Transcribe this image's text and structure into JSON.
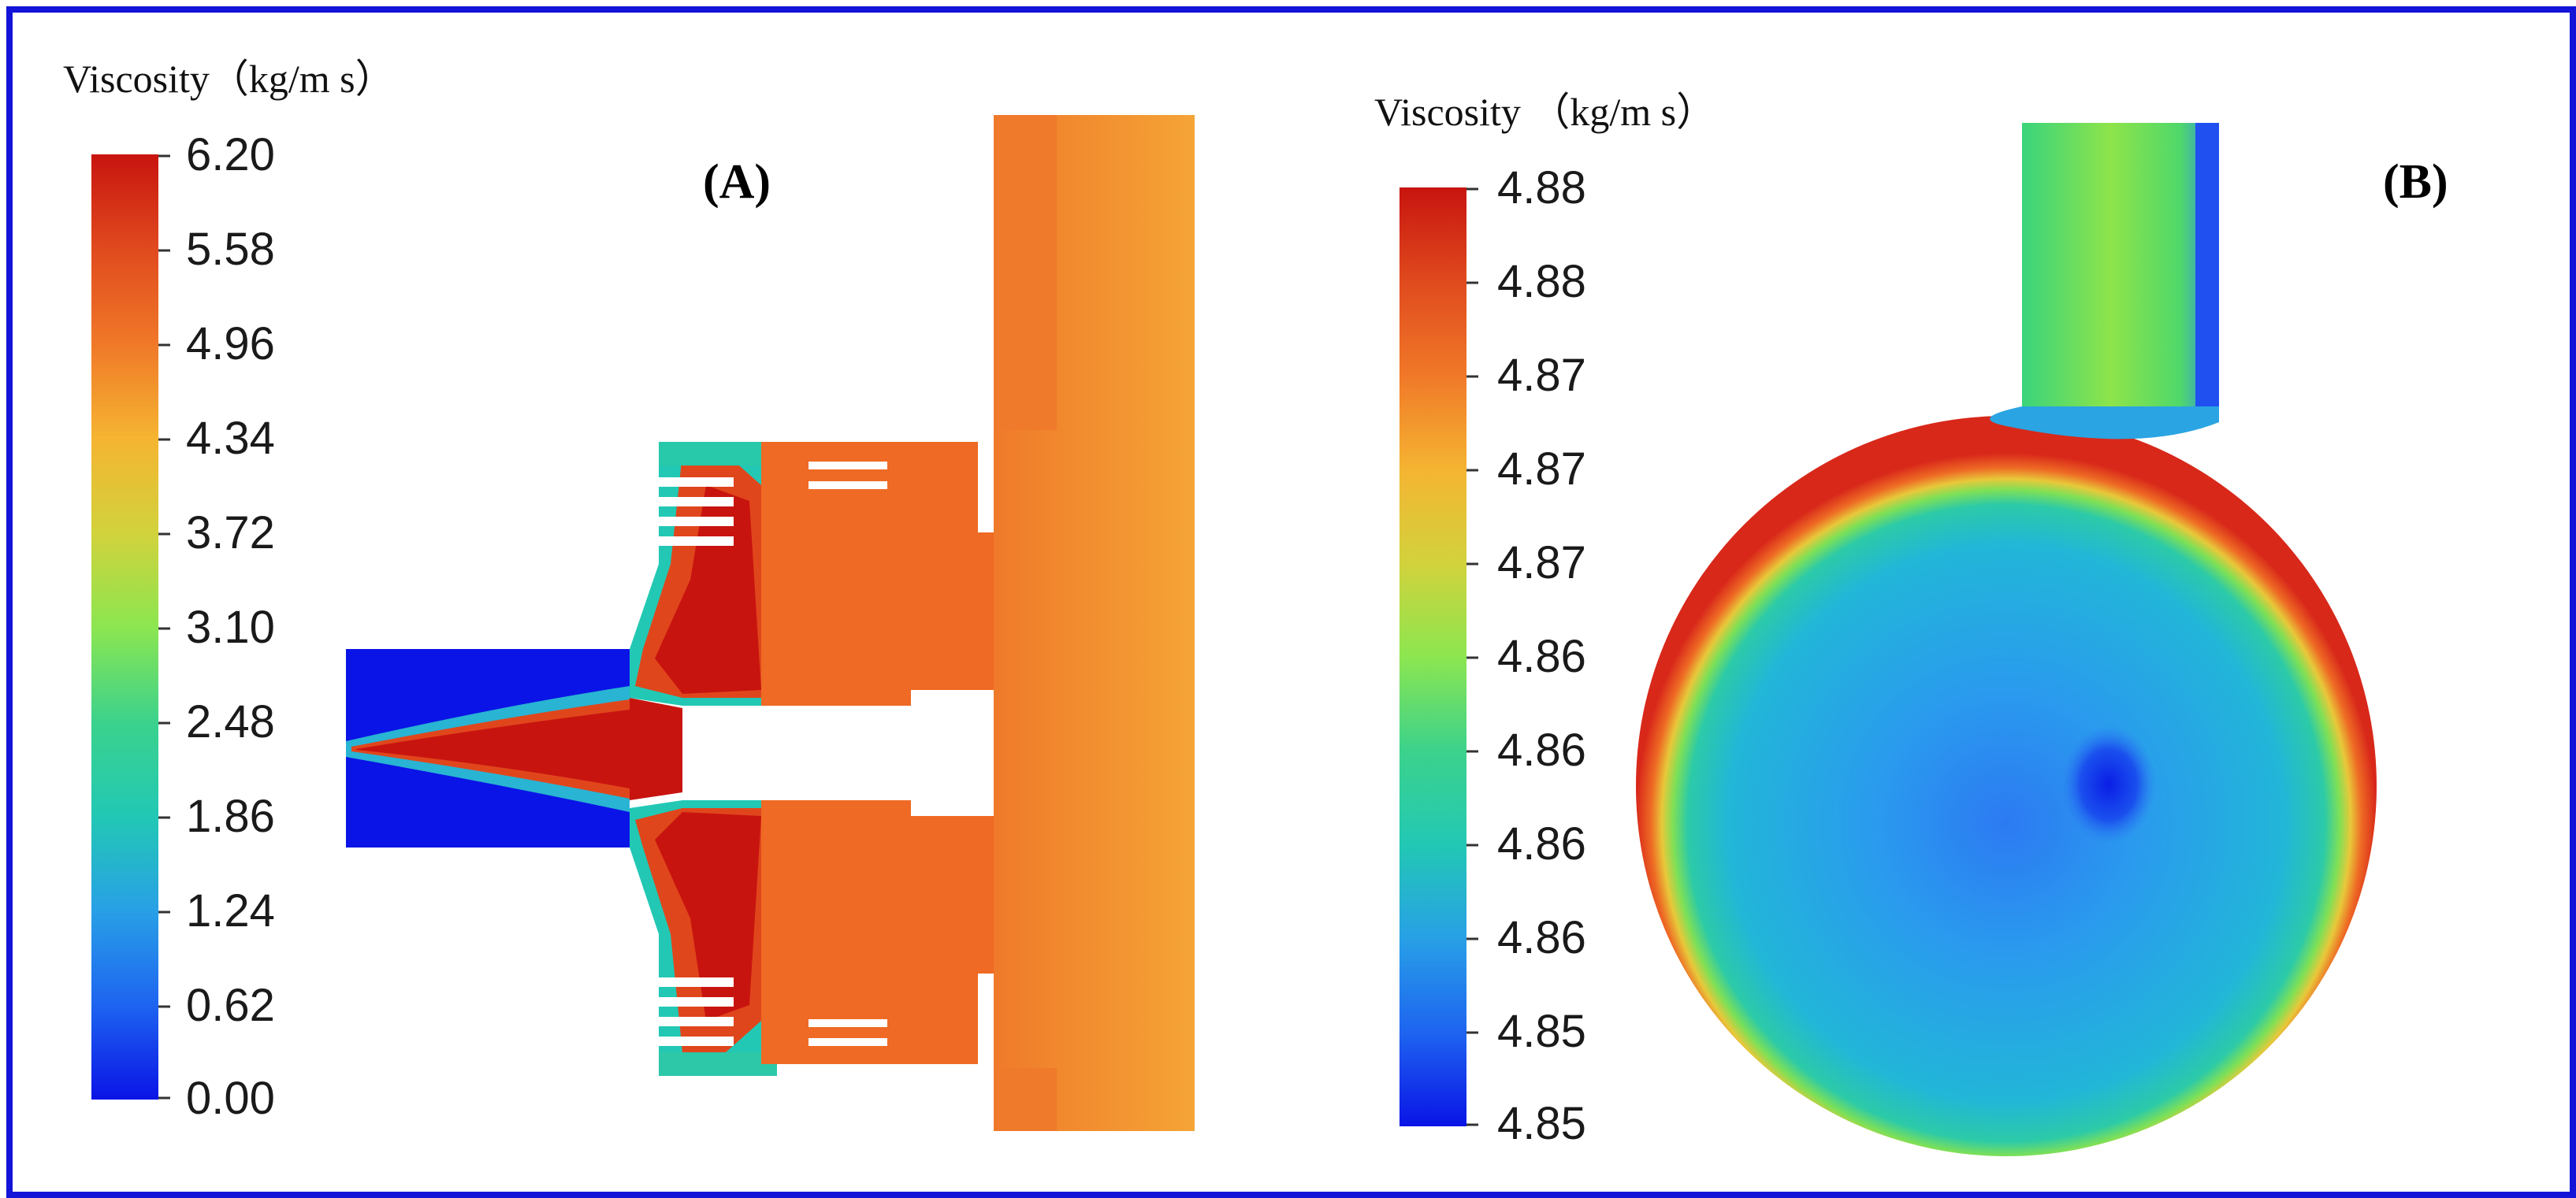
{
  "figure": {
    "border_color": "#1414d8",
    "panels": [
      {
        "id": "A",
        "label": "(A)",
        "colorbar": {
          "title": "Viscosity（kg/m s）",
          "ticks": [
            "6.20",
            "5.58",
            "4.96",
            "4.34",
            "3.72",
            "3.10",
            "2.48",
            "1.86",
            "1.24",
            "0.62",
            "0.00"
          ]
        }
      },
      {
        "id": "B",
        "label": "(B)",
        "colorbar": {
          "title": "Viscosity （kg/m s）",
          "ticks": [
            "4.88",
            "4.88",
            "4.87",
            "4.87",
            "4.87",
            "4.86",
            "4.86",
            "4.86",
            "4.86",
            "4.85",
            "4.85"
          ]
        }
      }
    ],
    "colormap": [
      "#0a14e6",
      "#1e64f0",
      "#28a0e6",
      "#22c8b4",
      "#3cd28c",
      "#8ce650",
      "#d2d23c",
      "#f5b432",
      "#f07828",
      "#e04a1e",
      "#c8140f"
    ]
  }
}
